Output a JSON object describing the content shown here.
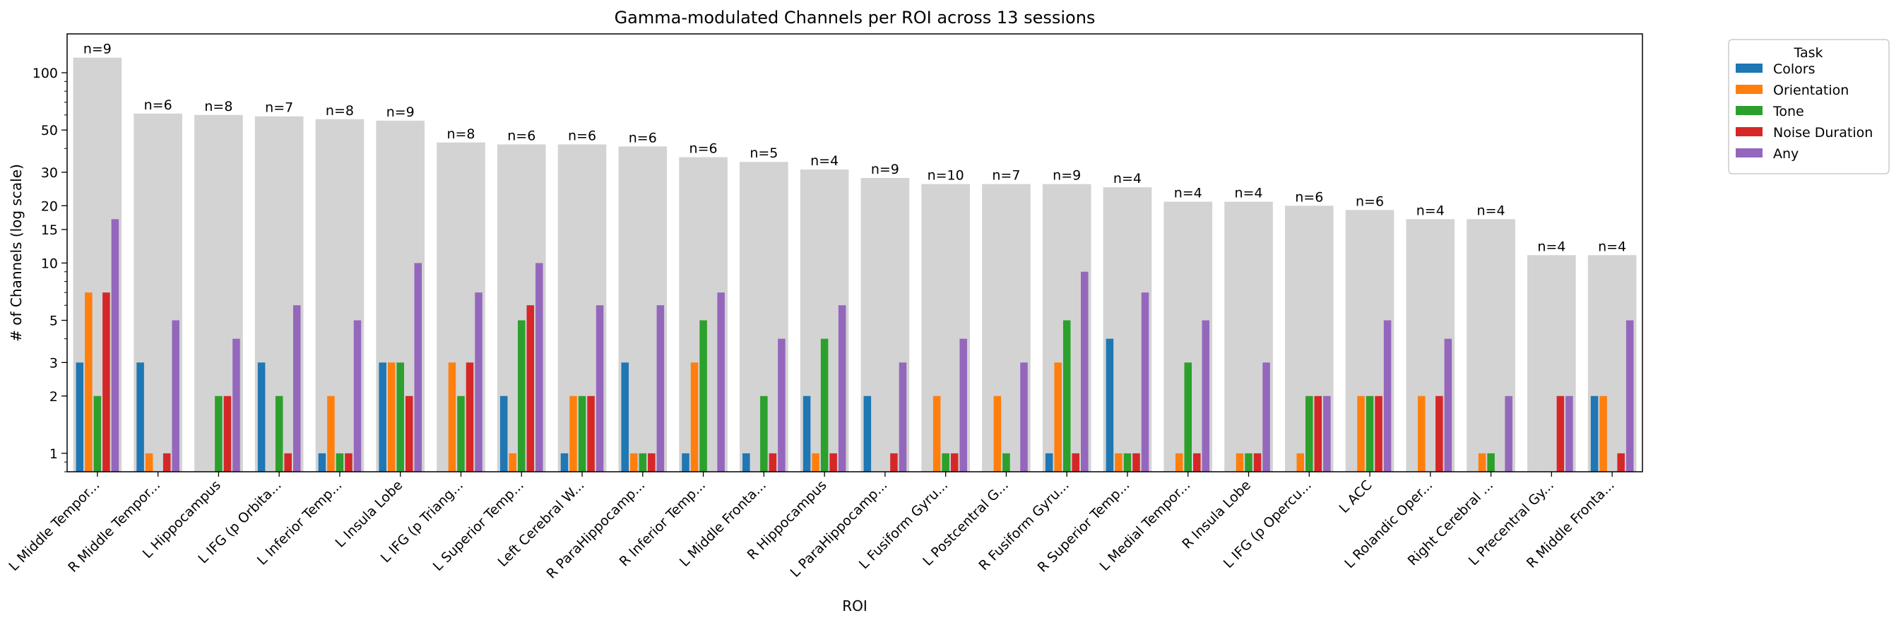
{
  "chart_data": {
    "type": "bar",
    "title": "Gamma-modulated Channels per ROI across 13 sessions",
    "xlabel": "ROI",
    "ylabel": "# of Channels (log scale)",
    "yscale": "log",
    "ylim": [
      0.8,
      160
    ],
    "y_ticks": [
      {
        "value": 1,
        "label": "1"
      },
      {
        "value": 2,
        "label": "2"
      },
      {
        "value": 3,
        "label": "3"
      },
      {
        "value": 5,
        "label": "5"
      },
      {
        "value": 10,
        "label": "10"
      },
      {
        "value": 15,
        "label": "15"
      },
      {
        "value": 20,
        "label": "20"
      },
      {
        "value": 30,
        "label": "30"
      },
      {
        "value": 50,
        "label": "50"
      },
      {
        "value": 100,
        "label": "100"
      }
    ],
    "grid": false,
    "legend": {
      "title": "Task",
      "placement": "outside-right"
    },
    "categories": [
      "L Middle Tempor...",
      "R Middle Tempor...",
      "L Hippocampus",
      "L IFG (p Orbita...",
      "L Inferior Temp...",
      "L Insula Lobe",
      "L IFG (p Triang...",
      "L Superior Temp...",
      "Left Cerebral W...",
      "R ParaHippocamp...",
      "R Inferior Temp...",
      "L Middle Fronta...",
      "R Hippocampus",
      "L ParaHippocamp...",
      "L Fusiform Gyru...",
      "L Postcentral G...",
      "R Fusiform Gyru...",
      "R Superior Temp...",
      "L Medial Tempor...",
      "R Insula Lobe",
      "L IFG (p Opercu...",
      "L ACC",
      "L Rolandic Oper...",
      "Right Cerebral ...",
      "L Precentral Gy...",
      "R Middle Fronta..."
    ],
    "total_channels": [
      120,
      61,
      60,
      59,
      57,
      56,
      43,
      42,
      42,
      41,
      36,
      34,
      31,
      28,
      26,
      26,
      26,
      25,
      21,
      21,
      20,
      19,
      17,
      17,
      11,
      11
    ],
    "session_counts": [
      "n=9",
      "n=6",
      "n=8",
      "n=7",
      "n=8",
      "n=9",
      "n=8",
      "n=6",
      "n=6",
      "n=6",
      "n=6",
      "n=5",
      "n=4",
      "n=9",
      "n=10",
      "n=7",
      "n=9",
      "n=4",
      "n=4",
      "n=4",
      "n=6",
      "n=6",
      "n=4",
      "n=4",
      "n=4",
      "n=4"
    ],
    "total_color": "#d3d3d3",
    "series": [
      {
        "name": "Colors",
        "color": "#1f77b4",
        "values": [
          3,
          3,
          0,
          3,
          1,
          3,
          0,
          2,
          1,
          3,
          1,
          1,
          2,
          2,
          0,
          0,
          1,
          4,
          0,
          0,
          0,
          0,
          0,
          0,
          0,
          2
        ]
      },
      {
        "name": "Orientation",
        "color": "#ff7f0e",
        "values": [
          7,
          1,
          0,
          0,
          2,
          3,
          3,
          1,
          2,
          1,
          3,
          0,
          1,
          0,
          2,
          2,
          3,
          1,
          1,
          1,
          1,
          2,
          2,
          1,
          0,
          2
        ]
      },
      {
        "name": "Tone",
        "color": "#2ca02c",
        "values": [
          2,
          0,
          2,
          2,
          1,
          3,
          2,
          5,
          2,
          1,
          5,
          2,
          4,
          0,
          1,
          1,
          5,
          1,
          3,
          1,
          2,
          2,
          0,
          1,
          0,
          0
        ]
      },
      {
        "name": "Noise Duration",
        "color": "#d62728",
        "values": [
          7,
          1,
          2,
          1,
          1,
          2,
          3,
          6,
          2,
          1,
          0,
          1,
          1,
          1,
          1,
          0,
          1,
          1,
          1,
          1,
          2,
          2,
          2,
          0,
          2,
          1
        ]
      },
      {
        "name": "Any",
        "color": "#9467bd",
        "values": [
          17,
          5,
          4,
          6,
          5,
          10,
          7,
          10,
          6,
          6,
          7,
          4,
          6,
          3,
          4,
          3,
          9,
          7,
          5,
          3,
          2,
          5,
          4,
          2,
          2,
          5
        ]
      }
    ]
  }
}
